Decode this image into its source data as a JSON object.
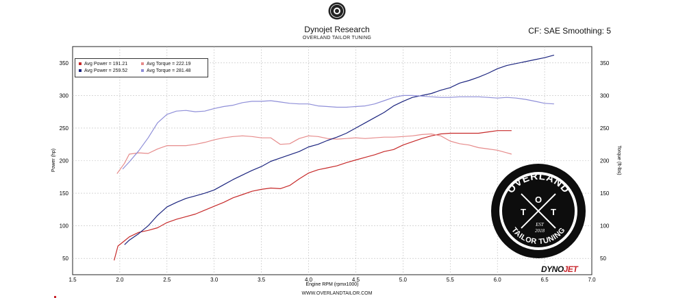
{
  "header": {
    "title": "Dynojet Research",
    "subtitle": "OVERLAND TAILOR TUNING",
    "correction": "CF: SAE Smoothing: 5",
    "url": "WWW.OVERLANDTAILOR.COM"
  },
  "legend": {
    "items": [
      {
        "label": "Avg Power = 191.21",
        "color": "#c62828"
      },
      {
        "label": "Avg Torque = 222.19",
        "color": "#e68a8a"
      },
      {
        "label": "Avg Power = 259.52",
        "color": "#1a237e"
      },
      {
        "label": "Avg Torque = 281.48",
        "color": "#8e8ed8"
      }
    ]
  },
  "badge": {
    "top_text": "OVERLAND",
    "bottom_text": "TAILOR TUNING",
    "letter_left": "T",
    "letter_center": "O",
    "letter_right": "T",
    "est": "EST",
    "year": "2018"
  },
  "brand": {
    "part1": "DYNO",
    "part2": "JET"
  },
  "chart_data": {
    "type": "line",
    "xlabel": "Engine RPM (rpmx1000)",
    "ylabel_left": "Power (hp)",
    "ylabel_right": "Torque (ft-lbs)",
    "xlim": [
      1.5,
      7.0
    ],
    "ylim": [
      25,
      375
    ],
    "x_ticks": [
      1.5,
      2.0,
      2.5,
      3.0,
      3.5,
      4.0,
      4.5,
      5.0,
      5.5,
      6.0,
      6.5,
      7.0
    ],
    "x_tick_labels": [
      "1.5",
      "2.0",
      "2.5",
      "3.0",
      "3.5",
      "4.0",
      "4.5",
      "5.0",
      "5.5",
      "6.0",
      "6.5",
      "7.0"
    ],
    "y_ticks": [
      50,
      100,
      150,
      200,
      250,
      300,
      350
    ],
    "y_tick_labels": [
      "50",
      "100",
      "150",
      "200",
      "250",
      "300",
      "350"
    ],
    "grid": true,
    "series": [
      {
        "name": "Avg Power = 191.21",
        "color": "#c62828",
        "x": [
          1.94,
          1.98,
          2.05,
          2.1,
          2.2,
          2.3,
          2.4,
          2.5,
          2.6,
          2.7,
          2.8,
          2.9,
          3.0,
          3.1,
          3.2,
          3.3,
          3.4,
          3.5,
          3.6,
          3.7,
          3.8,
          3.9,
          4.0,
          4.1,
          4.2,
          4.3,
          4.4,
          4.5,
          4.6,
          4.7,
          4.8,
          4.9,
          5.0,
          5.1,
          5.2,
          5.3,
          5.4,
          5.5,
          5.6,
          5.7,
          5.8,
          5.9,
          6.0,
          6.1,
          6.15
        ],
        "values": [
          47,
          69,
          77,
          83,
          90,
          93,
          97,
          105,
          110,
          114,
          118,
          124,
          130,
          136,
          143,
          148,
          153,
          156,
          158,
          157,
          162,
          172,
          181,
          186,
          189,
          192,
          197,
          201,
          205,
          209,
          214,
          217,
          224,
          229,
          234,
          238,
          241,
          242,
          242,
          242,
          242,
          244,
          246,
          246,
          246
        ]
      },
      {
        "name": "Avg Torque = 222.19",
        "color": "#e68a8a",
        "x": [
          1.97,
          2.05,
          2.1,
          2.2,
          2.3,
          2.4,
          2.5,
          2.6,
          2.7,
          2.8,
          2.9,
          3.0,
          3.1,
          3.2,
          3.3,
          3.4,
          3.5,
          3.6,
          3.7,
          3.8,
          3.9,
          4.0,
          4.1,
          4.2,
          4.3,
          4.4,
          4.5,
          4.6,
          4.7,
          4.8,
          4.9,
          5.0,
          5.1,
          5.2,
          5.3,
          5.4,
          5.5,
          5.6,
          5.7,
          5.8,
          5.9,
          6.0,
          6.1,
          6.15
        ],
        "values": [
          180,
          196,
          210,
          212,
          211,
          218,
          223,
          223,
          223,
          225,
          228,
          232,
          235,
          237,
          238,
          237,
          235,
          235,
          225,
          226,
          234,
          238,
          237,
          234,
          233,
          234,
          235,
          234,
          235,
          236,
          236,
          237,
          238,
          240,
          241,
          238,
          230,
          226,
          224,
          220,
          218,
          216,
          212,
          210
        ]
      },
      {
        "name": "Avg Power = 259.52",
        "color": "#1a237e",
        "x": [
          2.05,
          2.1,
          2.2,
          2.3,
          2.4,
          2.5,
          2.6,
          2.7,
          2.8,
          2.9,
          3.0,
          3.1,
          3.2,
          3.3,
          3.4,
          3.5,
          3.6,
          3.7,
          3.8,
          3.9,
          4.0,
          4.1,
          4.2,
          4.3,
          4.4,
          4.5,
          4.6,
          4.7,
          4.8,
          4.9,
          5.0,
          5.1,
          5.2,
          5.3,
          5.4,
          5.5,
          5.6,
          5.7,
          5.8,
          5.9,
          6.0,
          6.1,
          6.2,
          6.3,
          6.4,
          6.5,
          6.6
        ],
        "values": [
          71,
          78,
          88,
          100,
          116,
          129,
          136,
          142,
          146,
          150,
          155,
          163,
          171,
          178,
          185,
          191,
          199,
          204,
          209,
          214,
          221,
          225,
          231,
          236,
          242,
          250,
          258,
          266,
          274,
          284,
          291,
          297,
          300,
          303,
          308,
          312,
          319,
          323,
          328,
          334,
          341,
          346,
          349,
          352,
          355,
          358,
          362
        ]
      },
      {
        "name": "Avg Torque = 281.48",
        "color": "#8e8ed8",
        "x": [
          2.03,
          2.1,
          2.2,
          2.3,
          2.4,
          2.5,
          2.6,
          2.7,
          2.8,
          2.9,
          3.0,
          3.1,
          3.2,
          3.3,
          3.4,
          3.5,
          3.6,
          3.7,
          3.8,
          3.9,
          4.0,
          4.1,
          4.2,
          4.3,
          4.4,
          4.5,
          4.6,
          4.7,
          4.8,
          4.9,
          5.0,
          5.1,
          5.2,
          5.3,
          5.4,
          5.5,
          5.6,
          5.7,
          5.8,
          5.9,
          6.0,
          6.1,
          6.2,
          6.3,
          6.4,
          6.5,
          6.6
        ],
        "values": [
          187,
          198,
          215,
          235,
          258,
          271,
          276,
          277,
          275,
          276,
          280,
          283,
          285,
          289,
          291,
          291,
          292,
          290,
          288,
          287,
          287,
          284,
          283,
          282,
          282,
          283,
          284,
          287,
          292,
          297,
          300,
          300,
          299,
          298,
          297,
          297,
          298,
          298,
          298,
          297,
          296,
          297,
          296,
          294,
          291,
          288,
          287
        ]
      }
    ]
  }
}
